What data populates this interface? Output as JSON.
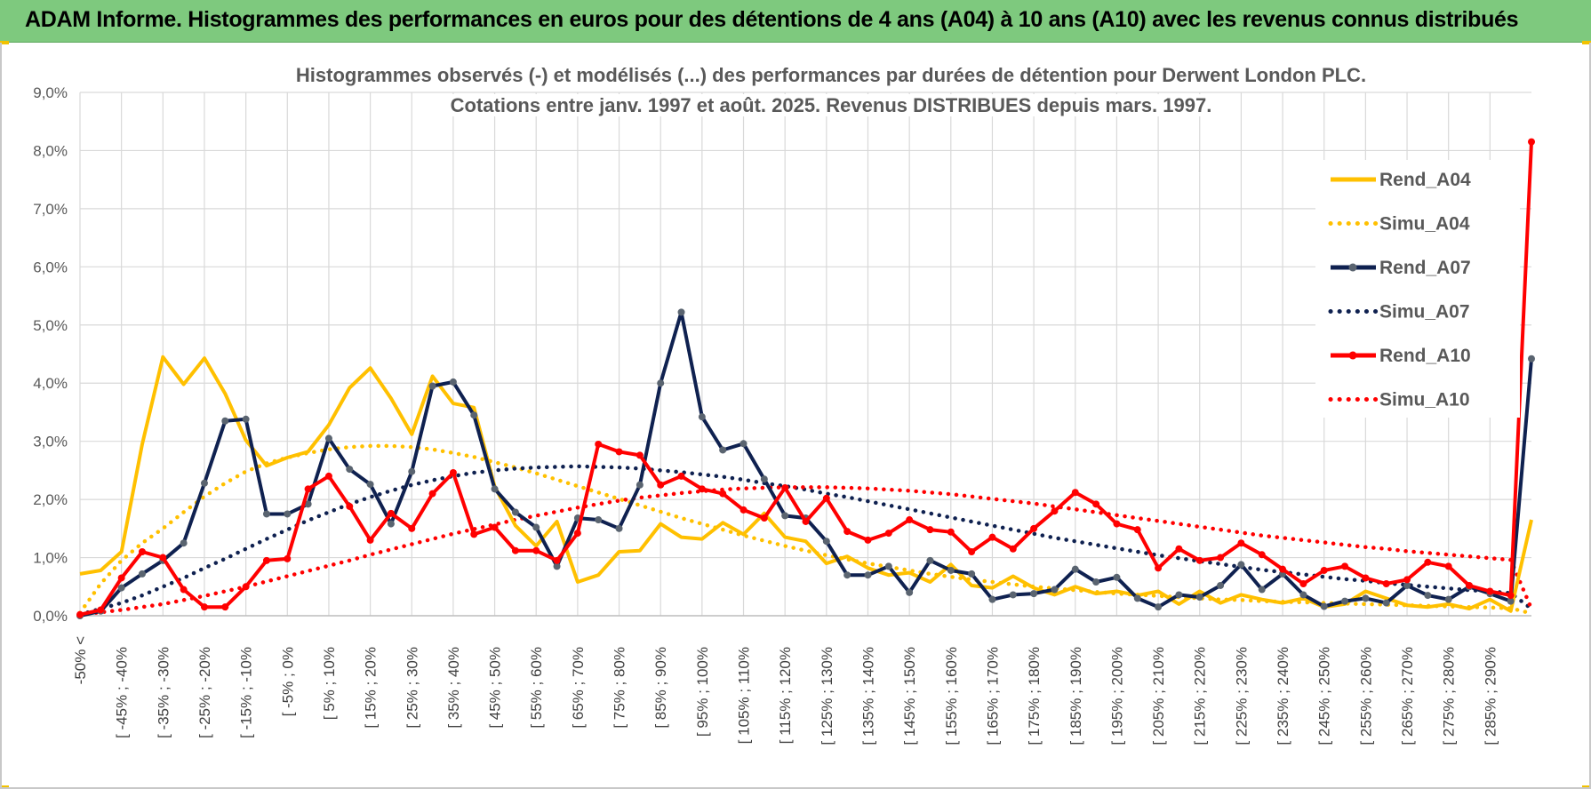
{
  "header": {
    "banner_title": "ADAM Informe. Histogrammes des performances en euros pour des détentions de 4 ans (A04) à 10 ans (A10) avec les revenus connus distribués",
    "banner_color": "#7ec97e",
    "accent_color": "#f2c200"
  },
  "chart_data": {
    "type": "line",
    "title": "Histogrammes observés (-) et modélisés (...) des performances par durées de détention pour Derwent London PLC.",
    "subtitle": "Cotations entre janv. 1997 et août. 2025. Revenus DISTRIBUES depuis mars. 1997.",
    "xlabel": "",
    "ylabel": "",
    "ylim": [
      0,
      9
    ],
    "yticks": [
      "0,0%",
      "1,0%",
      "2,0%",
      "3,0%",
      "4,0%",
      "5,0%",
      "6,0%",
      "7,0%",
      "8,0%",
      "9,0%"
    ],
    "grid": true,
    "legend_position": "top-right",
    "x_tick_labels": [
      "-50% <",
      "[ -45% ; -40%",
      "[ -35% ; -30%",
      "[ -25% ; -20%",
      "[ -15% ; -10%",
      "[ -5% ; 0%",
      "[ 5% ; 10%",
      "[ 15% ; 20%",
      "[ 25% ; 30%",
      "[ 35% ; 40%",
      "[ 45% ; 50%",
      "[ 55% ; 60%",
      "[ 65% ; 70%",
      "[ 75% ; 80%",
      "[ 85% ; 90%",
      "[ 95% ; 100%",
      "[ 105% ; 110%",
      "[ 115% ; 120%",
      "[ 125% ; 130%",
      "[ 135% ; 140%",
      "[ 145% ; 150%",
      "[ 155% ; 160%",
      "[ 165% ; 170%",
      "[ 175% ; 180%",
      "[ 185% ; 190%",
      "[ 195% ; 200%",
      "[ 205% ; 210%",
      "[ 215% ; 220%",
      "[ 225% ; 230%",
      "[ 235% ; 240%",
      "[ 245% ; 250%",
      "[ 255% ; 260%",
      "[ 265% ; 270%",
      "[ 275% ; 280%",
      "[ 285% ; 290%"
    ],
    "series": [
      {
        "name": "Rend_A04",
        "color": "#ffc000",
        "style": "solid",
        "values": [
          0.72,
          0.78,
          1.1,
          2.95,
          4.45,
          3.98,
          4.43,
          3.82,
          3.02,
          2.58,
          2.72,
          2.82,
          3.28,
          3.92,
          4.26,
          3.74,
          3.12,
          4.12,
          3.65,
          3.58,
          2.22,
          1.55,
          1.2,
          1.62,
          0.58,
          0.7,
          1.1,
          1.12,
          1.58,
          1.35,
          1.32,
          1.6,
          1.4,
          1.76,
          1.35,
          1.28,
          0.9,
          1.02,
          0.82,
          0.7,
          0.74,
          0.58,
          0.88,
          0.52,
          0.48,
          0.68,
          0.48,
          0.36,
          0.5,
          0.38,
          0.42,
          0.35,
          0.42,
          0.2,
          0.42,
          0.22,
          0.36,
          0.28,
          0.22,
          0.3,
          0.15,
          0.2,
          0.42,
          0.3,
          0.18,
          0.15,
          0.2,
          0.12,
          0.28,
          0.08,
          1.65
        ]
      },
      {
        "name": "Simu_A04",
        "color": "#ffc000",
        "style": "dotted",
        "values": [
          0.05,
          0.55,
          0.95,
          1.25,
          1.5,
          1.78,
          2.05,
          2.28,
          2.48,
          2.62,
          2.72,
          2.8,
          2.86,
          2.9,
          2.92,
          2.92,
          2.9,
          2.86,
          2.8,
          2.73,
          2.64,
          2.55,
          2.45,
          2.34,
          2.23,
          2.12,
          2.01,
          1.9,
          1.79,
          1.68,
          1.58,
          1.48,
          1.38,
          1.29,
          1.2,
          1.12,
          1.04,
          0.97,
          0.9,
          0.84,
          0.78,
          0.72,
          0.67,
          0.62,
          0.58,
          0.54,
          0.5,
          0.47,
          0.44,
          0.41,
          0.38,
          0.36,
          0.34,
          0.32,
          0.3,
          0.28,
          0.27,
          0.25,
          0.24,
          0.23,
          0.22,
          0.21,
          0.2,
          0.19,
          0.18,
          0.17,
          0.16,
          0.15,
          0.14,
          0.13,
          0.04
        ]
      },
      {
        "name": "Rend_A07",
        "color": "#0f2150",
        "style": "solid",
        "markers": true,
        "values": [
          0.0,
          0.08,
          0.48,
          0.72,
          0.95,
          1.25,
          2.28,
          3.35,
          3.38,
          1.75,
          1.75,
          1.92,
          3.05,
          2.52,
          2.26,
          1.58,
          2.48,
          3.95,
          4.02,
          3.45,
          2.18,
          1.78,
          1.52,
          0.85,
          1.68,
          1.65,
          1.5,
          2.25,
          4.0,
          5.22,
          3.42,
          2.85,
          2.96,
          2.35,
          1.72,
          1.68,
          1.28,
          0.7,
          0.7,
          0.85,
          0.4,
          0.95,
          0.78,
          0.72,
          0.28,
          0.36,
          0.38,
          0.45,
          0.8,
          0.58,
          0.66,
          0.3,
          0.15,
          0.36,
          0.32,
          0.52,
          0.88,
          0.45,
          0.72,
          0.36,
          0.16,
          0.25,
          0.3,
          0.22,
          0.52,
          0.35,
          0.28,
          0.5,
          0.38,
          0.25,
          4.42
        ]
      },
      {
        "name": "Simu_A07",
        "color": "#0f2150",
        "style": "dotted",
        "values": [
          0.02,
          0.12,
          0.22,
          0.35,
          0.5,
          0.65,
          0.82,
          0.98,
          1.15,
          1.32,
          1.48,
          1.64,
          1.78,
          1.92,
          2.04,
          2.15,
          2.25,
          2.33,
          2.4,
          2.46,
          2.5,
          2.53,
          2.55,
          2.56,
          2.57,
          2.56,
          2.55,
          2.53,
          2.5,
          2.47,
          2.43,
          2.39,
          2.34,
          2.28,
          2.23,
          2.17,
          2.1,
          2.04,
          1.97,
          1.9,
          1.83,
          1.76,
          1.69,
          1.62,
          1.55,
          1.48,
          1.41,
          1.34,
          1.28,
          1.22,
          1.16,
          1.1,
          1.04,
          0.99,
          0.94,
          0.89,
          0.84,
          0.79,
          0.75,
          0.71,
          0.67,
          0.63,
          0.6,
          0.56,
          0.53,
          0.5,
          0.47,
          0.44,
          0.42,
          0.39,
          0.12
        ]
      },
      {
        "name": "Rend_A10",
        "color": "#ff0000",
        "style": "solid",
        "markers": true,
        "values": [
          0.02,
          0.1,
          0.65,
          1.1,
          1.0,
          0.45,
          0.15,
          0.15,
          0.5,
          0.95,
          0.98,
          2.18,
          2.4,
          1.88,
          1.3,
          1.76,
          1.5,
          2.1,
          2.46,
          1.4,
          1.52,
          1.12,
          1.12,
          0.95,
          1.42,
          2.95,
          2.82,
          2.76,
          2.25,
          2.4,
          2.18,
          2.1,
          1.82,
          1.68,
          2.2,
          1.62,
          2.02,
          1.45,
          1.3,
          1.42,
          1.65,
          1.48,
          1.44,
          1.1,
          1.35,
          1.15,
          1.5,
          1.8,
          2.12,
          1.92,
          1.58,
          1.48,
          0.82,
          1.15,
          0.95,
          1.0,
          1.25,
          1.05,
          0.8,
          0.55,
          0.78,
          0.85,
          0.65,
          0.55,
          0.62,
          0.92,
          0.85,
          0.52,
          0.42,
          0.35,
          8.15
        ]
      },
      {
        "name": "Simu_A10",
        "color": "#ff0000",
        "style": "dotted",
        "values": [
          0.02,
          0.06,
          0.1,
          0.15,
          0.2,
          0.27,
          0.34,
          0.42,
          0.5,
          0.59,
          0.68,
          0.77,
          0.86,
          0.95,
          1.05,
          1.14,
          1.23,
          1.32,
          1.41,
          1.49,
          1.57,
          1.65,
          1.72,
          1.79,
          1.86,
          1.92,
          1.98,
          2.03,
          2.07,
          2.11,
          2.14,
          2.17,
          2.19,
          2.2,
          2.21,
          2.21,
          2.21,
          2.2,
          2.19,
          2.17,
          2.15,
          2.12,
          2.09,
          2.05,
          2.01,
          1.97,
          1.93,
          1.88,
          1.83,
          1.78,
          1.73,
          1.68,
          1.63,
          1.58,
          1.53,
          1.48,
          1.43,
          1.38,
          1.34,
          1.3,
          1.26,
          1.22,
          1.18,
          1.15,
          1.11,
          1.08,
          1.05,
          1.02,
          0.99,
          0.96,
          0.12
        ]
      }
    ]
  }
}
